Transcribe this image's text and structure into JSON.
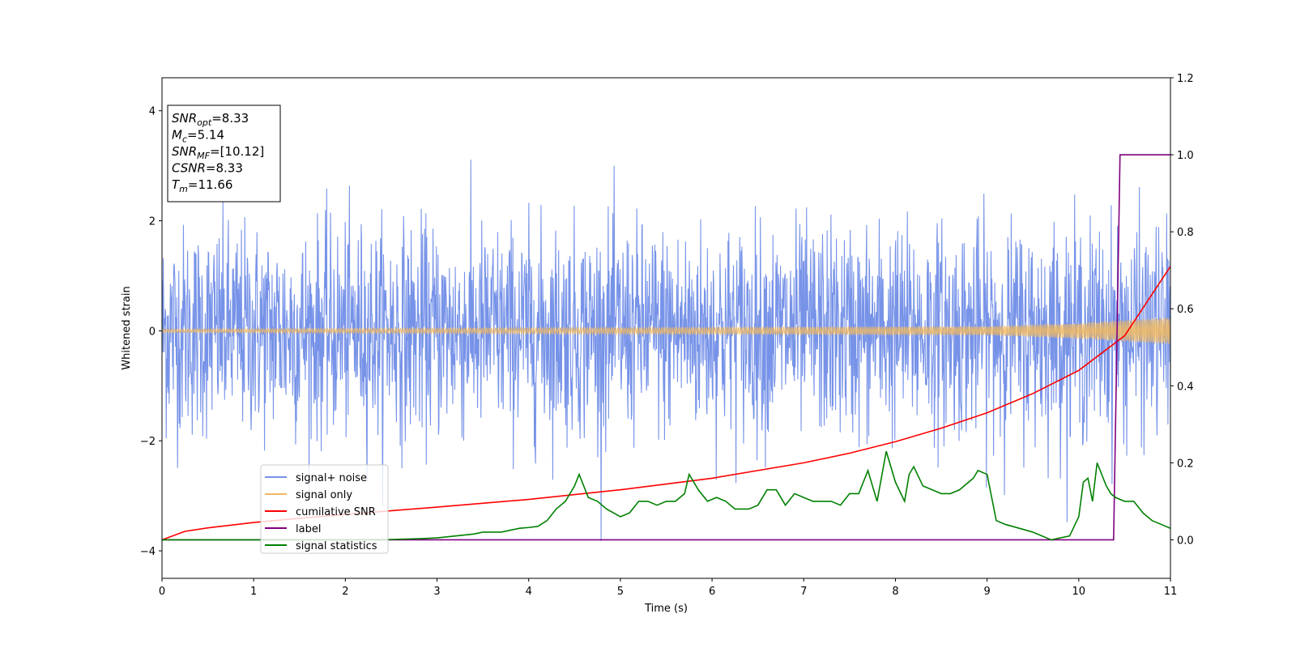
{
  "chart_data": {
    "type": "line",
    "title": "",
    "xlabel": "Time (s)",
    "ylabel": "Whitened strain",
    "xlim": [
      0,
      11
    ],
    "ylim": [
      -4.5,
      4.6
    ],
    "y2lim": [
      -0.1,
      1.2
    ],
    "xticks": [
      "0",
      "1",
      "2",
      "3",
      "4",
      "5",
      "6",
      "7",
      "8",
      "9",
      "10",
      "11"
    ],
    "yticks": [
      "−4",
      "−2",
      "0",
      "2",
      "4"
    ],
    "y2ticks": [
      "0.0",
      "0.2",
      "0.4",
      "0.6",
      "0.8",
      "1.0",
      "1.2"
    ],
    "grid": false,
    "legend_position": "lower-left",
    "annotation": {
      "lines": [
        {
          "label": "SNR",
          "sub": "opt",
          "value": "=8.33"
        },
        {
          "label": "M",
          "sub": "c",
          "value": "=5.14"
        },
        {
          "label": "SNR",
          "sub": "MF",
          "value": "=[10.12]"
        },
        {
          "label": "CSNR",
          "sub": "",
          "value": "=8.33"
        },
        {
          "label": "T",
          "sub": "m",
          "value": "=11.66"
        }
      ]
    },
    "series": [
      {
        "name": "signal+ noise",
        "axis": "left",
        "color": "#7793e8",
        "kind": "noise",
        "amplitude_envelope": [
          [
            0,
            2.5
          ],
          [
            5.7,
            4.15
          ],
          [
            11,
            3.3
          ]
        ],
        "min_value": -4.1
      },
      {
        "name": "signal only",
        "axis": "left",
        "color": "#f0b860",
        "kind": "chirp",
        "amplitude": [
          [
            0,
            0.03
          ],
          [
            9,
            0.08
          ],
          [
            10,
            0.14
          ],
          [
            11,
            0.25
          ]
        ]
      },
      {
        "name": "cumilative SNR",
        "axis": "right",
        "color": "#ff0000",
        "x": [
          0,
          0.25,
          0.5,
          1,
          1.5,
          2,
          3,
          4,
          5,
          6,
          7,
          7.5,
          8,
          8.5,
          9,
          9.5,
          10,
          10.5,
          11
        ],
        "values": [
          0.0,
          0.022,
          0.031,
          0.045,
          0.056,
          0.066,
          0.085,
          0.105,
          0.13,
          0.16,
          0.2,
          0.225,
          0.255,
          0.29,
          0.33,
          0.38,
          0.44,
          0.53,
          0.71
        ]
      },
      {
        "name": "label",
        "axis": "right",
        "color": "#800080",
        "x": [
          0,
          10.38,
          10.45,
          11
        ],
        "values": [
          0,
          0,
          1,
          1
        ]
      },
      {
        "name": "signal statistics",
        "axis": "right",
        "color": "#008000",
        "x": [
          0,
          0.5,
          1,
          1.5,
          2,
          2.5,
          2.8,
          3,
          3.2,
          3.4,
          3.5,
          3.7,
          3.8,
          3.9,
          4,
          4.1,
          4.2,
          4.3,
          4.4,
          4.5,
          4.55,
          4.65,
          4.75,
          4.85,
          5,
          5.1,
          5.2,
          5.3,
          5.4,
          5.5,
          5.6,
          5.7,
          5.75,
          5.85,
          5.95,
          6.05,
          6.15,
          6.25,
          6.4,
          6.5,
          6.6,
          6.7,
          6.8,
          6.9,
          7.1,
          7.3,
          7.4,
          7.5,
          7.6,
          7.7,
          7.8,
          7.9,
          8,
          8.1,
          8.15,
          8.2,
          8.3,
          8.4,
          8.5,
          8.6,
          8.7,
          8.8,
          8.85,
          8.9,
          9,
          9.1,
          9.2,
          9.5,
          9.7,
          9.9,
          10,
          10.05,
          10.1,
          10.15,
          10.2,
          10.3,
          10.35,
          10.4,
          10.5,
          10.6,
          10.7,
          10.8,
          10.9,
          11
        ],
        "values": [
          0,
          0,
          0,
          0,
          0,
          0.001,
          0.003,
          0.005,
          0.01,
          0.015,
          0.02,
          0.02,
          0.025,
          0.03,
          0.032,
          0.035,
          0.05,
          0.08,
          0.1,
          0.14,
          0.17,
          0.11,
          0.1,
          0.08,
          0.06,
          0.07,
          0.1,
          0.1,
          0.09,
          0.1,
          0.1,
          0.12,
          0.17,
          0.13,
          0.1,
          0.11,
          0.1,
          0.08,
          0.08,
          0.09,
          0.13,
          0.13,
          0.09,
          0.12,
          0.1,
          0.1,
          0.09,
          0.12,
          0.12,
          0.18,
          0.1,
          0.23,
          0.15,
          0.1,
          0.17,
          0.19,
          0.14,
          0.13,
          0.12,
          0.12,
          0.13,
          0.15,
          0.16,
          0.18,
          0.17,
          0.05,
          0.04,
          0.02,
          0.0,
          0.01,
          0.06,
          0.15,
          0.16,
          0.1,
          0.2,
          0.14,
          0.12,
          0.11,
          0.1,
          0.1,
          0.07,
          0.05,
          0.04,
          0.03
        ]
      }
    ]
  }
}
